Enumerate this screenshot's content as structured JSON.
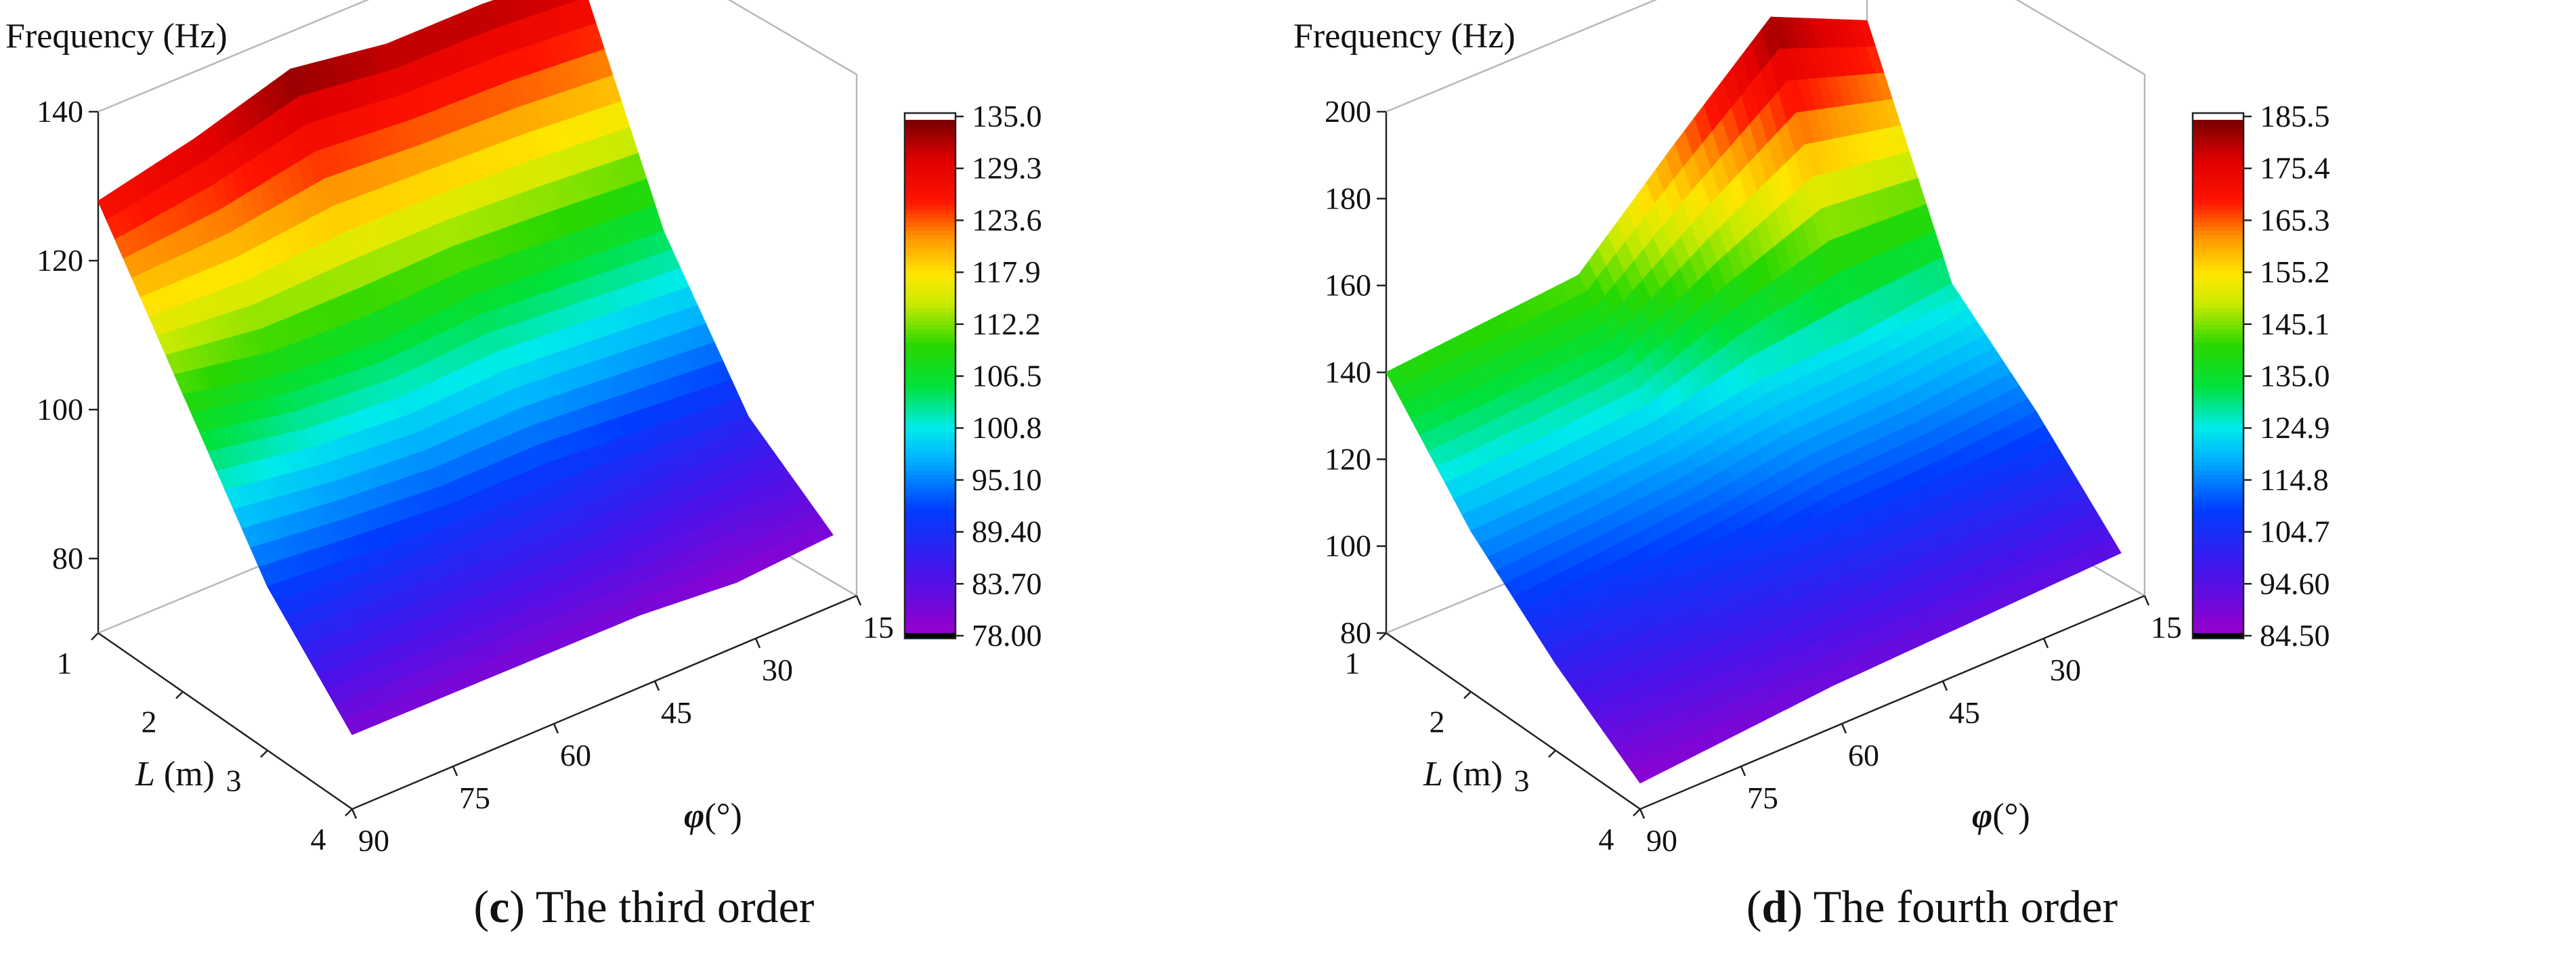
{
  "chart_data": [
    {
      "type": "surface3d",
      "panel_letter": "c",
      "panel_title": "The third order",
      "zlabel": "Frequency (Hz)",
      "xlabel": "L (m)",
      "xlabel_var": "L",
      "xlabel_unit": " (m)",
      "ylabel": "φ(°)",
      "ylabel_var": "φ",
      "ylabel_unit": "(°)",
      "x_ticks": [
        "1",
        "2",
        "3",
        "4"
      ],
      "y_ticks": [
        "90",
        "75",
        "60",
        "45",
        "30",
        "15"
      ],
      "z_ticks": [
        "80",
        "100",
        "120",
        "140"
      ],
      "zlim": [
        70,
        140
      ],
      "L": [
        1,
        2,
        3,
        4
      ],
      "phi": [
        90,
        75,
        60,
        45,
        30,
        15
      ],
      "values": [
        [
          128,
          131,
          135,
          133,
          133,
          132
        ],
        [
          110,
          107,
          106,
          107,
          106,
          105
        ],
        [
          92,
          91,
          90,
          90,
          89,
          88
        ],
        [
          80,
          80,
          80,
          80,
          79,
          80
        ]
      ],
      "colorbar": {
        "min": 78.0,
        "max": 135.0,
        "labels": [
          "135.0",
          "129.3",
          "123.6",
          "117.9",
          "112.2",
          "106.5",
          "100.8",
          "95.10",
          "89.40",
          "83.70",
          "78.00"
        ]
      }
    },
    {
      "type": "surface3d",
      "panel_letter": "d",
      "panel_title": "The fourth order",
      "zlabel": "Frequency (Hz)",
      "xlabel": "L (m)",
      "xlabel_var": "L",
      "xlabel_unit": " (m)",
      "ylabel": "φ(°)",
      "ylabel_var": "φ",
      "ylabel_unit": "(°)",
      "x_ticks": [
        "1",
        "2",
        "3",
        "4"
      ],
      "y_ticks": [
        "90",
        "75",
        "60",
        "45",
        "30",
        "15"
      ],
      "z_ticks": [
        "80",
        "100",
        "120",
        "140",
        "160",
        "180",
        "200"
      ],
      "zlim": [
        80,
        200
      ],
      "L": [
        1,
        2,
        3,
        4
      ],
      "phi": [
        90,
        75,
        60,
        45,
        30,
        15
      ],
      "values": [
        [
          140,
          142,
          144,
          165,
          185,
          175
        ],
        [
          117,
          118,
          120,
          124,
          125,
          128
        ],
        [
          100,
          103,
          106,
          109,
          110,
          112
        ],
        [
          86,
          88,
          90,
          91,
          92,
          93
        ]
      ],
      "colorbar": {
        "min": 84.5,
        "max": 185.5,
        "labels": [
          "185.5",
          "175.4",
          "165.3",
          "155.2",
          "145.1",
          "135.0",
          "124.9",
          "114.8",
          "104.7",
          "94.60",
          "84.50"
        ]
      }
    }
  ]
}
